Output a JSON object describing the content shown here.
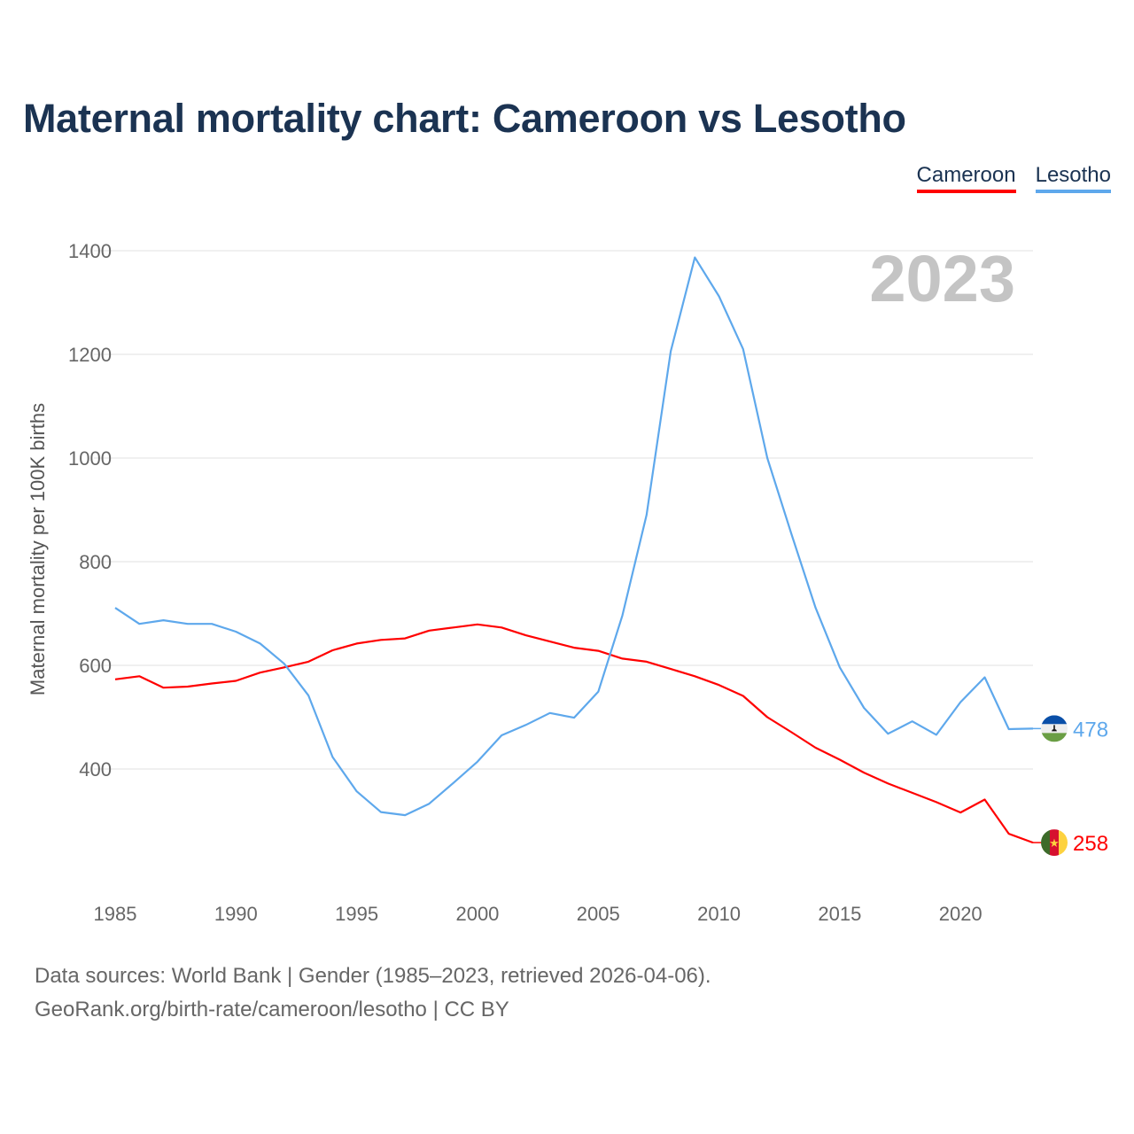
{
  "title": "Maternal mortality chart: Cameroon vs Lesotho",
  "footer": {
    "line1": "Data sources: World Bank | Gender (1985–2023, retrieved 2026-04-06).",
    "line2": "GeoRank.org/birth-rate/cameroon/lesotho | CC BY"
  },
  "chart_data": {
    "type": "line",
    "title": "Maternal mortality chart: Cameroon vs Lesotho",
    "ylabel": "Maternal mortality per 100K births",
    "xlabel": "",
    "year_watermark": "2023",
    "ylim": [
      200,
      1400
    ],
    "xlim": [
      1985,
      2023
    ],
    "yticks": [
      400,
      600,
      800,
      1000,
      1200,
      1400
    ],
    "xticks": [
      1985,
      1990,
      1995,
      2000,
      2005,
      2010,
      2015,
      2020
    ],
    "grid": true,
    "legend_position": "top-right",
    "x": [
      1985,
      1986,
      1987,
      1988,
      1989,
      1990,
      1991,
      1992,
      1993,
      1994,
      1995,
      1996,
      1997,
      1998,
      1999,
      2000,
      2001,
      2002,
      2003,
      2004,
      2005,
      2006,
      2007,
      2008,
      2009,
      2010,
      2011,
      2012,
      2013,
      2014,
      2015,
      2016,
      2017,
      2018,
      2019,
      2020,
      2021,
      2022,
      2023
    ],
    "series": [
      {
        "name": "Cameroon",
        "color": "#ff0000",
        "end_label": "258",
        "flag": "cameroon-flag",
        "values": [
          573,
          579,
          557,
          559,
          565,
          570,
          586,
          596,
          607,
          629,
          642,
          649,
          652,
          667,
          673,
          679,
          673,
          658,
          646,
          634,
          628,
          613,
          607,
          593,
          579,
          562,
          541,
          500,
          471,
          441,
          418,
          393,
          372,
          354,
          336,
          316,
          341,
          275,
          258
        ]
      },
      {
        "name": "Lesotho",
        "color": "#5ea8ec",
        "end_label": "478",
        "flag": "lesotho-flag",
        "values": [
          711,
          680,
          687,
          680,
          680,
          665,
          642,
          603,
          542,
          423,
          357,
          317,
          311,
          333,
          373,
          414,
          465,
          485,
          508,
          499,
          549,
          696,
          890,
          1206,
          1387,
          1312,
          1210,
          1000,
          853,
          711,
          596,
          518,
          468,
          492,
          466,
          529,
          577,
          477,
          478
        ]
      }
    ]
  }
}
